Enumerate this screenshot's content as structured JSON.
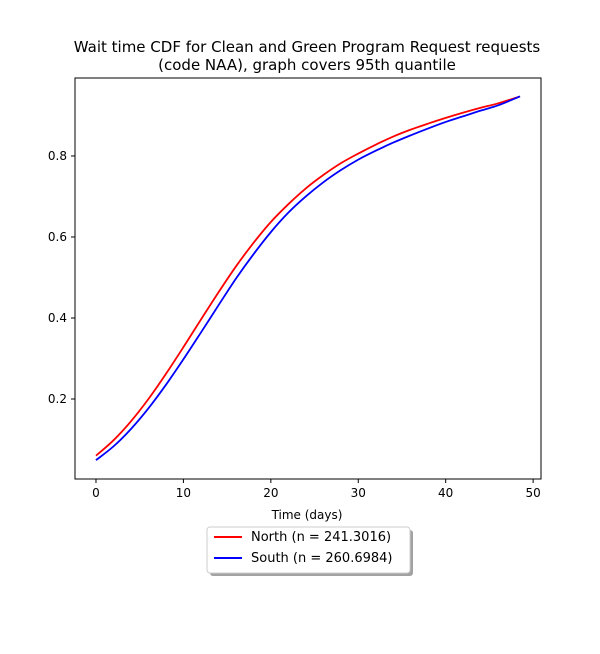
{
  "chart_data": {
    "type": "line",
    "title_line1": "Wait time CDF for Clean and Green Program Request  requests",
    "title_line2": "(code NAA), graph covers 95th quantile",
    "xlabel": "Time (days)",
    "ylabel": "",
    "xlim": [
      -2.4,
      50.9
    ],
    "ylim": [
      0.0025,
      0.9925
    ],
    "xticks": [
      0,
      10,
      20,
      30,
      40,
      50
    ],
    "yticks": [
      0.2,
      0.4,
      0.6,
      0.8
    ],
    "xtick_labels": [
      "0",
      "10",
      "20",
      "30",
      "40",
      "50"
    ],
    "ytick_labels": [
      "0.2",
      "0.4",
      "0.6",
      "0.8"
    ],
    "legend_position": "below",
    "series": [
      {
        "name": "North (n = 241.3016)",
        "color": "#ff0000",
        "x": [
          0,
          2,
          4,
          6,
          8,
          10,
          12,
          14,
          16,
          18,
          20,
          22,
          24,
          26,
          28,
          30,
          32,
          34,
          36,
          38,
          40,
          42,
          44,
          46,
          48.5
        ],
        "y": [
          0.06,
          0.098,
          0.145,
          0.2,
          0.262,
          0.328,
          0.396,
          0.463,
          0.527,
          0.585,
          0.637,
          0.681,
          0.72,
          0.753,
          0.782,
          0.806,
          0.828,
          0.848,
          0.865,
          0.88,
          0.894,
          0.907,
          0.919,
          0.93,
          0.947
        ]
      },
      {
        "name": "South (n = 260.6984)",
        "color": "#0000ff",
        "x": [
          0,
          2,
          4,
          6,
          8,
          10,
          12,
          14,
          16,
          18,
          20,
          22,
          24,
          26,
          28,
          30,
          32,
          34,
          36,
          38,
          40,
          42,
          44,
          46,
          48.5
        ],
        "y": [
          0.049,
          0.083,
          0.126,
          0.177,
          0.235,
          0.298,
          0.364,
          0.431,
          0.497,
          0.557,
          0.612,
          0.66,
          0.7,
          0.735,
          0.765,
          0.791,
          0.813,
          0.833,
          0.851,
          0.868,
          0.884,
          0.898,
          0.912,
          0.925,
          0.947
        ]
      }
    ]
  }
}
